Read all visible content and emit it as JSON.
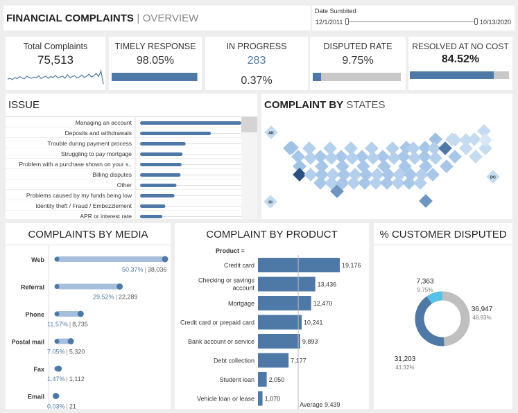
{
  "header": {
    "title_main": "FINANCIAL COMPLAINTS",
    "title_sep": "|",
    "title_sub": "OVERVIEW"
  },
  "date_filter": {
    "label": "Date Sumbited",
    "start": "12/1/2011",
    "end": "10/13/2020"
  },
  "kpis": {
    "total": {
      "label": "Total Complaints",
      "value": "75,513",
      "spark": [
        0.45,
        0.5,
        0.42,
        0.55,
        0.48,
        0.6,
        0.52,
        0.47,
        0.62,
        0.55,
        0.5,
        0.58,
        0.53,
        0.65,
        0.48,
        0.57,
        0.62,
        0.5,
        0.6,
        0.55,
        0.68,
        0.52,
        0.58,
        0.63,
        0.5,
        0.72,
        0.55,
        0.6,
        0.66,
        0.52,
        0.58,
        0.7,
        0.55,
        0.62,
        0.75,
        0.58,
        0.64,
        0.8,
        0.6,
        0.95,
        0.15
      ]
    },
    "timely": {
      "label": "TIMELY RESPONSE",
      "value": "98.05%",
      "fraction": 0.9805
    },
    "progress": {
      "label": "IN PROGRESS",
      "count": "283",
      "pct": "0.37%"
    },
    "disputed": {
      "label": "DISPUTED RATE",
      "value": "9.75%",
      "fraction": 0.0975
    },
    "resolved": {
      "label": "RESOLVED AT NO COST",
      "value": "84.52%",
      "fraction": 0.8452
    }
  },
  "issue": {
    "title": "ISSUE",
    "items": [
      {
        "label": "Managing an account",
        "value": 1.0
      },
      {
        "label": "Deposits and withdrawals",
        "value": 0.7
      },
      {
        "label": "Trouble during payment process",
        "value": 0.45
      },
      {
        "label": "Struggling to pay mortgage",
        "value": 0.42
      },
      {
        "label": "Problem with a purchase shown on your s..",
        "value": 0.41
      },
      {
        "label": "Billing disputes",
        "value": 0.4
      },
      {
        "label": "Other",
        "value": 0.36
      },
      {
        "label": "Problems caused by my funds being low",
        "value": 0.34
      },
      {
        "label": "Identity theft / Fraud / Embezzlement",
        "value": 0.25
      },
      {
        "label": "APR or interest rate",
        "value": 0.22
      }
    ]
  },
  "states": {
    "title_main": "COMPLAINT BY",
    "title_sub": "STATES",
    "labels": {
      "ak": "AK",
      "hi": "HI",
      "dc": "DC"
    }
  },
  "media": {
    "title": "COMPLAINTS BY MEDIA",
    "items": [
      {
        "label": "Web",
        "pct": "50.37%",
        "count": "38,036",
        "fraction": 0.5037
      },
      {
        "label": "Referral",
        "pct": "29.52%",
        "count": "22,289",
        "fraction": 0.2952
      },
      {
        "label": "Phone",
        "pct": "11.57%",
        "count": "8,735",
        "fraction": 0.1157
      },
      {
        "label": "Postal mail",
        "pct": "7.05%",
        "count": "5,320",
        "fraction": 0.0705
      },
      {
        "label": "Fax",
        "pct": "1.47%",
        "count": "1,112",
        "fraction": 0.0147
      },
      {
        "label": "Email",
        "pct": "0.03%",
        "count": "21",
        "fraction": 0.0003
      }
    ],
    "sep": "|"
  },
  "product": {
    "title": "COMPLAINT BY PRODUCT",
    "header": "Product",
    "average_label": "Average 9,439"
  },
  "disputed_panel": {
    "title": "% CUSTOMER DISPUTED",
    "segments": [
      {
        "value": "7,363",
        "pct": "9.75%"
      },
      {
        "value": "36,947",
        "pct": "48.93%"
      },
      {
        "value": "31,203",
        "pct": "41.32%"
      }
    ]
  },
  "chart_data": {
    "type": "bar",
    "categories": [
      "Credit card",
      "Checking or savings account",
      "Mortgage",
      "Credit card or prepaid card",
      "Bank account or service",
      "Debt collection",
      "Student loan",
      "Vehicle loan or lease"
    ],
    "values": [
      19176,
      13436,
      12470,
      10241,
      9893,
      7177,
      2050,
      1070
    ],
    "value_labels": [
      "19,176",
      "13,436",
      "12,470",
      "10,241",
      "9,893",
      "7,177",
      "2,050",
      "1,070"
    ],
    "average": 9439,
    "xlim": [
      0,
      20000
    ],
    "colors": {
      "bar": "#4e79a7",
      "light": "#a5bfdc",
      "track": "#c8c8c8",
      "teal": "#57c1e8",
      "grey": "#bfbfbf"
    }
  }
}
